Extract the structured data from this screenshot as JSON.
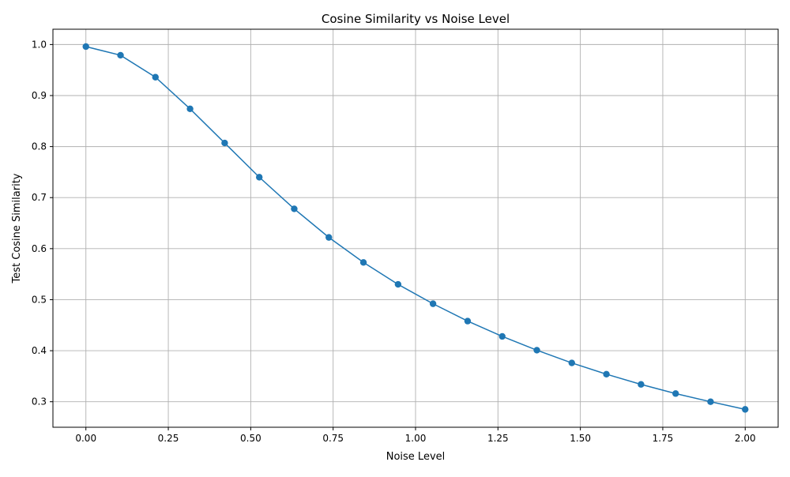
{
  "chart_data": {
    "type": "line",
    "title": "Cosine Similarity vs Noise Level",
    "xlabel": "Noise Level",
    "ylabel": "Test Cosine Similarity",
    "xlim": [
      -0.1,
      2.1
    ],
    "ylim": [
      0.25,
      1.03
    ],
    "xticks": [
      "0.00",
      "0.25",
      "0.50",
      "0.75",
      "1.00",
      "1.25",
      "1.50",
      "1.75",
      "2.00"
    ],
    "yticks": [
      "0.3",
      "0.4",
      "0.5",
      "0.6",
      "0.7",
      "0.8",
      "0.9",
      "1.0"
    ],
    "grid": true,
    "series": [
      {
        "color": "#1f77b4",
        "marker": "circle",
        "x": [
          0.0,
          0.105,
          0.211,
          0.316,
          0.421,
          0.526,
          0.632,
          0.737,
          0.842,
          0.947,
          1.053,
          1.158,
          1.263,
          1.368,
          1.474,
          1.579,
          1.684,
          1.789,
          1.895,
          2.0
        ],
        "y": [
          0.996,
          0.979,
          0.936,
          0.874,
          0.807,
          0.74,
          0.678,
          0.622,
          0.573,
          0.53,
          0.492,
          0.458,
          0.428,
          0.401,
          0.376,
          0.354,
          0.334,
          0.316,
          0.3,
          0.285
        ]
      }
    ]
  }
}
